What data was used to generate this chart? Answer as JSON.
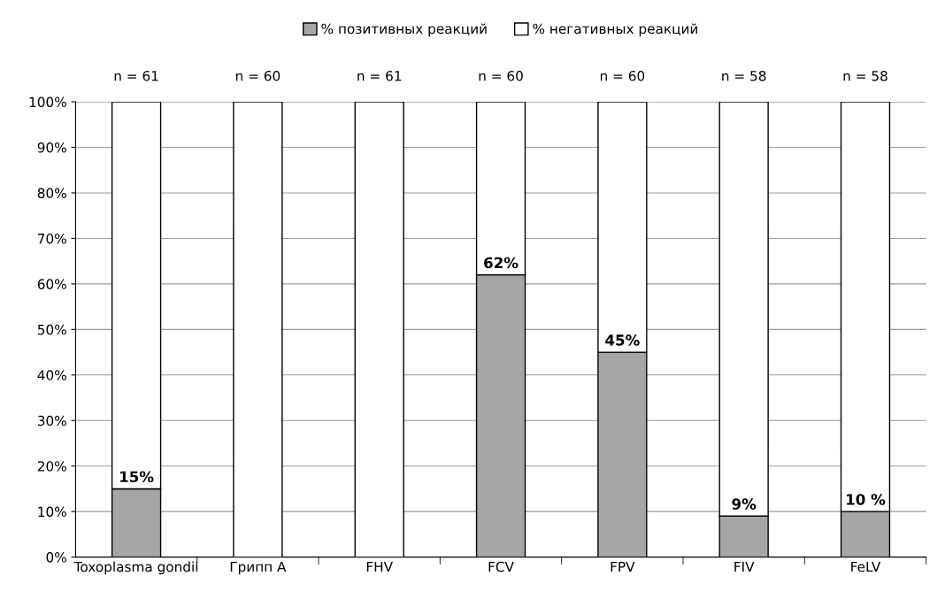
{
  "chart_data": {
    "type": "bar",
    "stacked": true,
    "categories": [
      "Toxoplasma gondii",
      "Грипп А",
      "FHV",
      "FCV",
      "FPV",
      "FIV",
      "FeLV"
    ],
    "series": [
      {
        "name": "% позитивных реакций",
        "color": "#a6a6a6",
        "values": [
          15,
          0,
          0,
          62,
          45,
          9,
          10
        ],
        "value_labels": [
          "15%",
          null,
          null,
          "62%",
          "45%",
          "9%",
          "10 %"
        ]
      },
      {
        "name": "% негативных реакций",
        "color": "#ffffff",
        "values": [
          85,
          100,
          100,
          38,
          55,
          91,
          90
        ]
      }
    ],
    "annotations": [
      "n = 61",
      "n = 60",
      "n = 61",
      "n = 60",
      "n = 60",
      "n = 58",
      "n = 58"
    ],
    "ylim": [
      0,
      100
    ],
    "yticks": [
      {
        "value": 0,
        "label": "0%"
      },
      {
        "value": 10,
        "label": "10%"
      },
      {
        "value": 20,
        "label": "20%"
      },
      {
        "value": 30,
        "label": "30%"
      },
      {
        "value": 40,
        "label": "40%"
      },
      {
        "value": 50,
        "label": "50%"
      },
      {
        "value": 60,
        "label": "60%"
      },
      {
        "value": 70,
        "label": "70%"
      },
      {
        "value": 80,
        "label": "80%"
      },
      {
        "value": 90,
        "label": "90%"
      },
      {
        "value": 100,
        "label": "100%"
      }
    ],
    "grid": "y",
    "legend": "top"
  }
}
